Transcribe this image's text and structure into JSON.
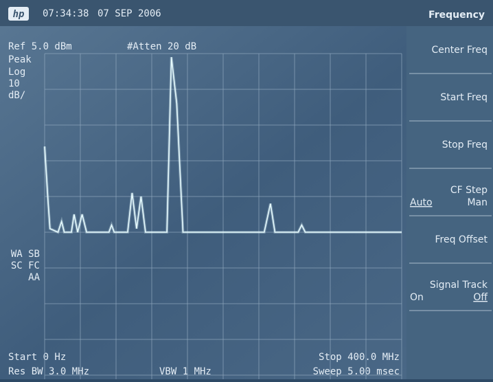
{
  "header": {
    "logo": "hp",
    "time": "07:34:38",
    "date": "07 SEP 2006"
  },
  "annotations": {
    "ref": "Ref 5.0 dBm",
    "atten": "#Atten 20 dB",
    "detector": "Peak",
    "scale": "Log",
    "scale_value": "10",
    "scale_unit": "dB/",
    "flags": [
      "WA SB",
      "SC FC",
      "AA"
    ],
    "start": "Start 0 Hz",
    "stop": "Stop 400.0 MHz",
    "rbw": "Res BW 3.0 MHz",
    "vbw": "VBW 1 MHz",
    "sweep": "Sweep 5.00 msec"
  },
  "trace": {
    "x": [
      0,
      4,
      6,
      15,
      19,
      22,
      30,
      33,
      37,
      42,
      47,
      72,
      75,
      78,
      93,
      98,
      103,
      108,
      113,
      137,
      142,
      148,
      155,
      246,
      253,
      258,
      284,
      288,
      292,
      400
    ],
    "values": [
      -21,
      -37,
      -44,
      -45,
      -42,
      -45,
      -45,
      -40,
      -45,
      -40,
      -45,
      -45,
      -43,
      -45,
      -45,
      -34,
      -44,
      -35,
      -45,
      -45,
      4,
      -9,
      -45,
      -45,
      -37,
      -45,
      -45,
      -43,
      -45,
      -45
    ],
    "xlim": [
      0,
      400
    ],
    "ylim": [
      -95,
      5
    ],
    "color": "#e6fbff"
  },
  "menu": {
    "title": "Frequency",
    "keys": [
      {
        "label": "Center Freq"
      },
      {
        "label": "Start Freq"
      },
      {
        "label": "Stop Freq"
      },
      {
        "label": "CF Step",
        "left": "Auto",
        "right": "Man"
      },
      {
        "label": "Freq Offset"
      },
      {
        "label": "Signal Track",
        "left": "On",
        "right": "Off"
      }
    ]
  }
}
